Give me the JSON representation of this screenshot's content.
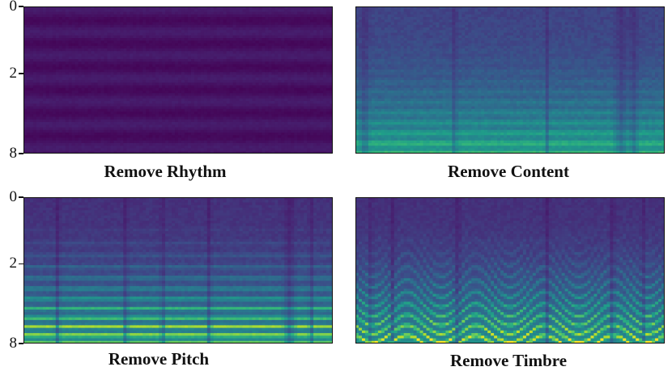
{
  "chart_data": [
    {
      "type": "heatmap",
      "title": "Remove Rhythm",
      "yticks": [
        "0",
        "2",
        "8"
      ],
      "colormap": "viridis",
      "content": "near-uniform low energy"
    },
    {
      "type": "heatmap",
      "title": "Remove Content",
      "yticks": [],
      "colormap": "viridis",
      "content": "smeared harmonics, flat formants"
    },
    {
      "type": "heatmap",
      "title": "Remove Pitch",
      "yticks": [
        "0",
        "2",
        "8"
      ],
      "colormap": "viridis",
      "content": "flat horizontal harmonics"
    },
    {
      "type": "heatmap",
      "title": "Remove Timbre",
      "yticks": [],
      "colormap": "viridis",
      "content": "curved pitch contours"
    }
  ]
}
